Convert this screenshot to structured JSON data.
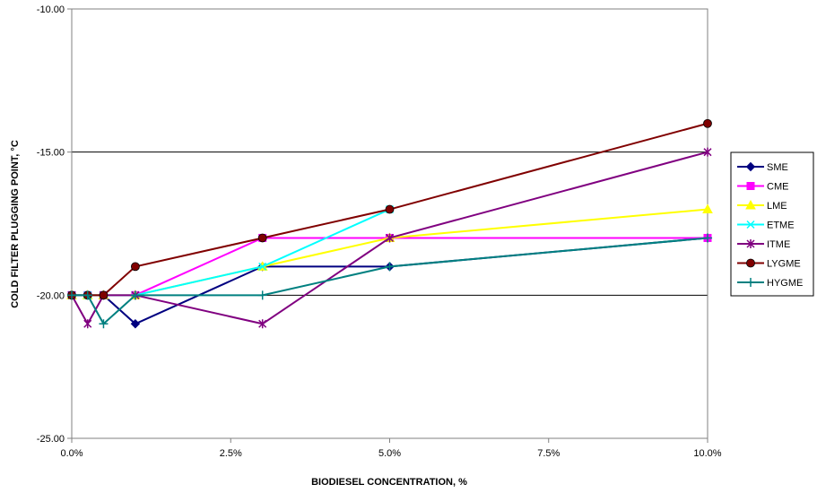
{
  "chart_data": {
    "type": "line",
    "xlabel": "BIODIESEL CONCENTRATION, %",
    "ylabel": "COLD FILTER PLUGGING POINT, °C",
    "xlim": [
      0,
      10
    ],
    "ylim": [
      -25,
      -10
    ],
    "x_ticks": [
      0,
      2.5,
      5,
      7.5,
      10
    ],
    "x_tick_labels": [
      "0.0%",
      "2.5%",
      "5.0%",
      "7.5%",
      "10.0%"
    ],
    "y_ticks": [
      -25,
      -20,
      -15,
      -10
    ],
    "y_tick_labels": [
      "-25.00",
      "-20.00",
      "-15.00",
      "-10.00"
    ],
    "grid": "horizontal",
    "legend_position": "right",
    "series": [
      {
        "name": "SME",
        "color": "#000080",
        "marker": "diamond",
        "x": [
          0,
          0.25,
          0.5,
          1,
          3,
          5,
          10
        ],
        "y": [
          -20,
          -20,
          -20,
          -21,
          -19,
          -19,
          -18
        ]
      },
      {
        "name": "CME",
        "color": "#ff00ff",
        "marker": "square",
        "x": [
          0,
          0.25,
          0.5,
          1,
          3,
          5,
          10
        ],
        "y": [
          -20,
          -20,
          -20,
          -20,
          -18,
          -18,
          -18
        ]
      },
      {
        "name": "LME",
        "color": "#ffff00",
        "marker": "triangle",
        "x": [
          0,
          0.25,
          0.5,
          1,
          3,
          5,
          10
        ],
        "y": [
          -20,
          -20,
          -20,
          -20,
          -19,
          -18,
          -17
        ]
      },
      {
        "name": "ETME",
        "color": "#00ffff",
        "marker": "x",
        "x": [
          0,
          0.25,
          0.5,
          1,
          3,
          5
        ],
        "y": [
          -20,
          -20,
          -20,
          -20,
          -19,
          -17
        ]
      },
      {
        "name": "ITME",
        "color": "#800080",
        "marker": "star",
        "x": [
          0,
          0.25,
          0.5,
          1,
          3,
          5,
          10
        ],
        "y": [
          -20,
          -21,
          -20,
          -20,
          -21,
          -18,
          -15
        ]
      },
      {
        "name": "LYGME",
        "color": "#800000",
        "marker": "circle",
        "x": [
          0,
          0.25,
          0.5,
          1,
          3,
          5,
          10
        ],
        "y": [
          -20,
          -20,
          -20,
          -19,
          -18,
          -17,
          -14
        ]
      },
      {
        "name": "HYGME",
        "color": "#008080",
        "marker": "plus",
        "x": [
          0,
          0.25,
          0.5,
          1,
          3,
          5,
          10
        ],
        "y": [
          -20,
          -20,
          -21,
          -20,
          -20,
          -19,
          -18
        ]
      }
    ]
  }
}
